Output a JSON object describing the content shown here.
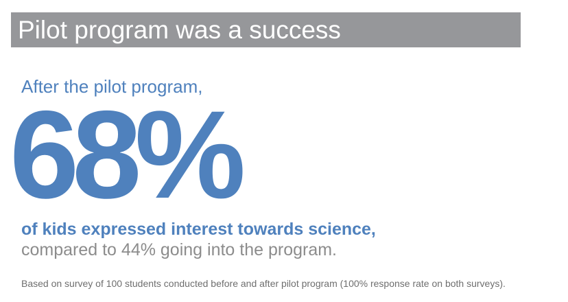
{
  "title": "Pilot program was a success",
  "intro": "After the pilot program,",
  "stat": "68%",
  "headline": "of kids expressed interest towards science,",
  "comparison": "compared to 44% going into the program.",
  "footnote": "Based on survey of 100 students conducted before and after pilot program (100% response rate on both surveys).",
  "colors": {
    "title_bar": "#96979a",
    "accent_blue": "#4f81bd",
    "secondary_gray": "#8c8c8c"
  }
}
